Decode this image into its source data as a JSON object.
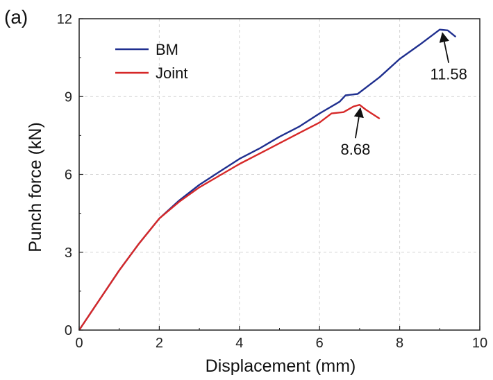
{
  "chart_data": {
    "type": "line",
    "panel_label": "(a)",
    "xlabel": "Displacement (mm)",
    "ylabel": "Punch force (kN)",
    "xlim": [
      0,
      10
    ],
    "ylim": [
      0,
      12
    ],
    "xticks": [
      0,
      2,
      4,
      6,
      8,
      10
    ],
    "yticks": [
      0,
      3,
      6,
      9,
      12
    ],
    "grid": true,
    "legend_position": "top-left",
    "series": [
      {
        "name": "BM",
        "color": "#1f2f8f",
        "x": [
          0,
          0.5,
          1.0,
          1.5,
          2.0,
          2.5,
          3.0,
          3.5,
          4.0,
          4.5,
          5.0,
          5.5,
          6.0,
          6.5,
          6.65,
          6.95,
          7.5,
          8.0,
          8.5,
          9.0,
          9.2,
          9.4
        ],
        "y": [
          0,
          1.15,
          2.3,
          3.35,
          4.3,
          5.0,
          5.6,
          6.1,
          6.6,
          7.0,
          7.45,
          7.85,
          8.35,
          8.8,
          9.05,
          9.1,
          9.75,
          10.45,
          11.0,
          11.58,
          11.55,
          11.3
        ]
      },
      {
        "name": "Joint",
        "color": "#d62828",
        "x": [
          0,
          0.5,
          1.0,
          1.5,
          2.0,
          2.5,
          3.0,
          3.5,
          4.0,
          4.5,
          5.0,
          5.5,
          6.0,
          6.3,
          6.6,
          6.85,
          7.0,
          7.15,
          7.3,
          7.5
        ],
        "y": [
          0,
          1.15,
          2.3,
          3.35,
          4.3,
          4.95,
          5.5,
          5.95,
          6.4,
          6.8,
          7.2,
          7.6,
          8.0,
          8.35,
          8.4,
          8.62,
          8.68,
          8.5,
          8.35,
          8.15
        ]
      }
    ],
    "annotations": [
      {
        "text": "11.58",
        "x": 9.05,
        "y": 11.58
      },
      {
        "text": "8.68",
        "x": 7.0,
        "y": 8.68
      }
    ]
  }
}
